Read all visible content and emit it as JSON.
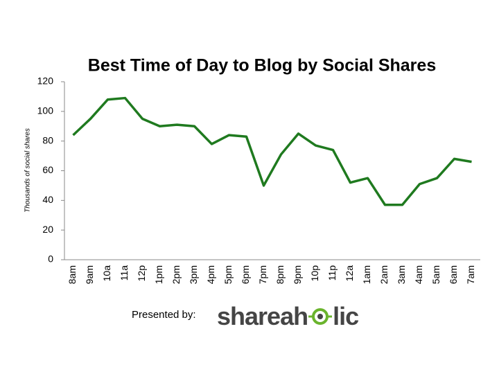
{
  "chart_data": {
    "type": "line",
    "title": "Best Time of Day to Blog by Social Shares",
    "y_label": "Thousands of social shares",
    "categories": [
      "8am",
      "9am",
      "10a",
      "11a",
      "12p",
      "1pm",
      "2pm",
      "3pm",
      "4pm",
      "5pm",
      "6pm",
      "7pm",
      "8pm",
      "9pm",
      "10p",
      "11p",
      "12a",
      "1am",
      "2am",
      "3am",
      "4am",
      "5am",
      "6am",
      "7am"
    ],
    "values": [
      84,
      95,
      108,
      109,
      95,
      90,
      91,
      90,
      78,
      84,
      83,
      50,
      71,
      85,
      77,
      74,
      52,
      55,
      37,
      37,
      51,
      55,
      68,
      66
    ],
    "color": "#1f7a1f",
    "ylim": [
      0,
      120
    ],
    "yticks": [
      0,
      20,
      40,
      60,
      80,
      100,
      120
    ],
    "grid": false
  },
  "footer": {
    "presented_by": "Presented by:",
    "logo_left": "shareah",
    "logo_right": "lic"
  }
}
